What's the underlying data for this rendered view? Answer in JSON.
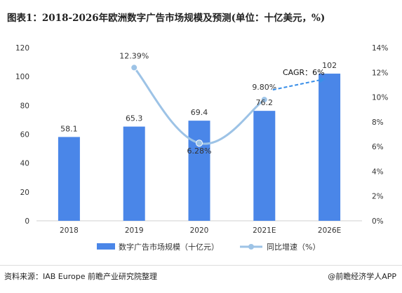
{
  "header": {
    "title": "图表1：2018-2026年欧洲数字广告市场规模及预测(单位：十亿美元，%)"
  },
  "footer": {
    "source": "资料来源：IAB Europe 前瞻产业研究院整理",
    "brand": "@前瞻经济学人APP"
  },
  "colors": {
    "bar": "#4a86e8",
    "line": "#9dc3e6",
    "marker": "#9dc3e6",
    "arrow": "#3a8fe8",
    "axis": "#d0d0d0",
    "text": "#333333"
  },
  "chart_data": {
    "type": "bar",
    "categories": [
      "2018",
      "2019",
      "2020",
      "2021E",
      "2026E"
    ],
    "series": [
      {
        "name": "数字广告市场规模（十亿元）",
        "kind": "bar",
        "axis": "left",
        "values": [
          58.1,
          65.3,
          69.4,
          76.2,
          102
        ],
        "labels": [
          "58.1",
          "65.3",
          "69.4",
          "76.2",
          "102"
        ]
      },
      {
        "name": "同比增速（%）",
        "kind": "line",
        "axis": "right",
        "values": [
          null,
          12.39,
          6.28,
          9.8,
          null
        ],
        "labels": [
          "",
          "12.39%",
          "6.28%",
          "9.80%",
          ""
        ]
      }
    ],
    "y_left": {
      "lim": [
        0,
        120
      ],
      "ticks": [
        0,
        20,
        40,
        60,
        80,
        100,
        120
      ],
      "tick_labels": [
        "0",
        "20",
        "40",
        "60",
        "80",
        "100",
        "120"
      ]
    },
    "y_right": {
      "lim": [
        0,
        14
      ],
      "ticks": [
        0,
        2,
        4,
        6,
        8,
        10,
        12,
        14
      ],
      "tick_labels": [
        "0%",
        "2%",
        "4%",
        "6%",
        "8%",
        "10%",
        "12%",
        "14%"
      ]
    },
    "annotation": {
      "text": "CAGR：6%",
      "from_category": "2021E",
      "to_category": "2026E"
    },
    "legend": {
      "position": "bottom",
      "items": [
        "数字广告市场规模（十亿元）",
        "同比增速（%）"
      ]
    },
    "grid": false
  }
}
